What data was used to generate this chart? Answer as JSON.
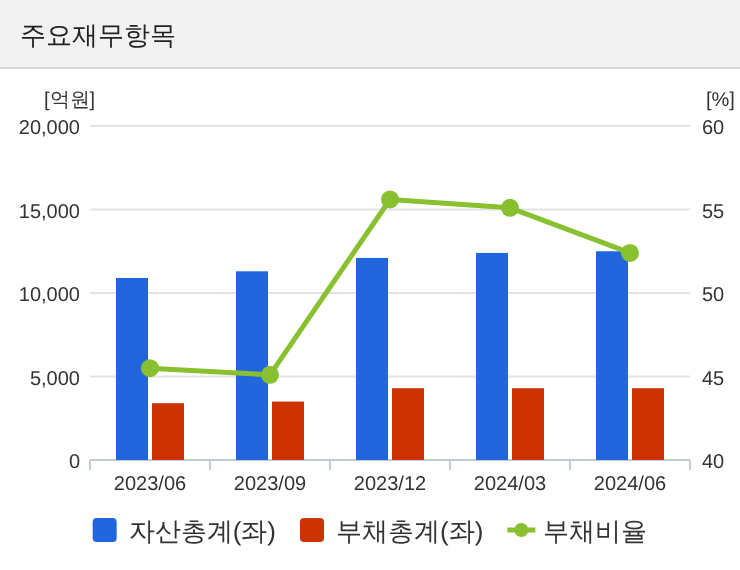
{
  "chart_data": {
    "type": "bar",
    "title": "주요재무항목",
    "ylabel": "[억원]",
    "y2label": "[%]",
    "categories": [
      "2023/06",
      "2023/09",
      "2023/12",
      "2024/03",
      "2024/06"
    ],
    "series": [
      {
        "name": "자산총계(좌)",
        "color": "#2266dd",
        "values": [
          10900,
          11300,
          12100,
          12400,
          12500
        ]
      },
      {
        "name": "부채총계(좌)",
        "color": "#cc3300",
        "values": [
          3400,
          3500,
          4300,
          4300,
          4300
        ]
      },
      {
        "name": "부채비율",
        "type": "line",
        "axis": "y2",
        "color": "#88c030",
        "values": [
          45.5,
          45.1,
          55.6,
          55.1,
          52.4
        ]
      }
    ],
    "ylim": [
      0,
      20000
    ],
    "yticks": [
      {
        "value": 0,
        "label": "0"
      },
      {
        "value": 5000,
        "label": "5,000"
      },
      {
        "value": 10000,
        "label": "10,000"
      },
      {
        "value": 15000,
        "label": "15,000"
      },
      {
        "value": 20000,
        "label": "20,000"
      }
    ],
    "y2lim": [
      40,
      60
    ],
    "y2ticks": [
      40,
      45,
      50,
      55,
      60
    ],
    "grid": "y",
    "legend": "bottom",
    "marker": "circle"
  }
}
